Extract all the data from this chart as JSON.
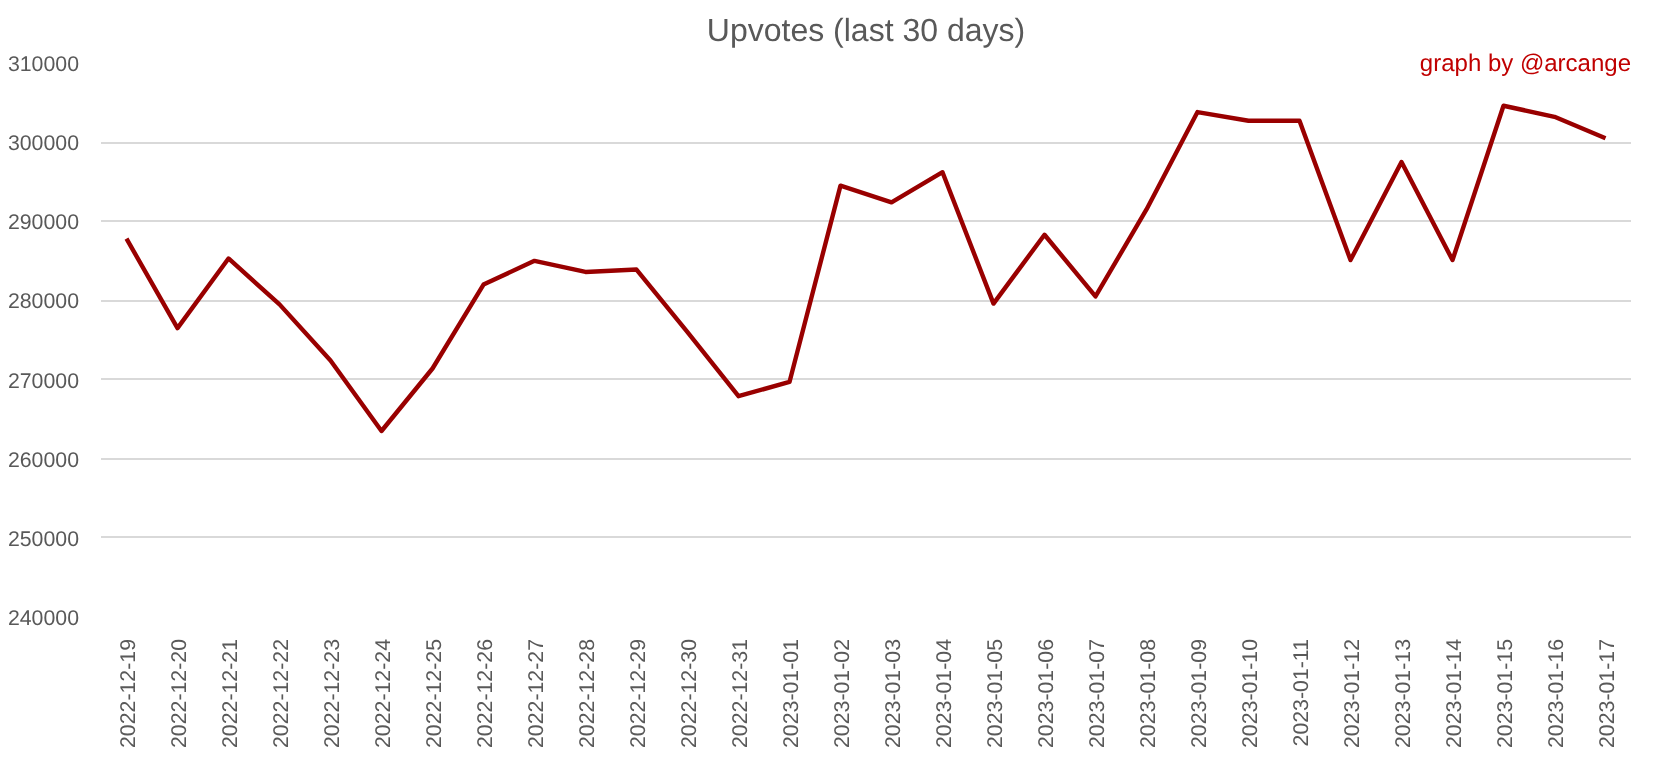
{
  "chart_data": {
    "type": "line",
    "title": "Upvotes (last 30 days)",
    "annotations": [
      "graph by @arcange"
    ],
    "categories": [
      "2022-12-19",
      "2022-12-20",
      "2022-12-21",
      "2022-12-22",
      "2022-12-23",
      "2022-12-24",
      "2022-12-25",
      "2022-12-26",
      "2022-12-27",
      "2022-12-28",
      "2022-12-29",
      "2022-12-30",
      "2022-12-31",
      "2023-01-01",
      "2023-01-02",
      "2023-01-03",
      "2023-01-04",
      "2023-01-05",
      "2023-01-06",
      "2023-01-07",
      "2023-01-08",
      "2023-01-09",
      "2023-01-10",
      "2023-01-11",
      "2023-01-12",
      "2023-01-13",
      "2023-01-14",
      "2023-01-15",
      "2023-01-16",
      "2023-01-17"
    ],
    "series": [
      {
        "color": "#990000",
        "values": [
          287800,
          276500,
          285300,
          279500,
          272400,
          263500,
          271400,
          282000,
          285000,
          283600,
          283900,
          276000,
          267900,
          269700,
          294500,
          292400,
          296200,
          279600,
          288300,
          280500,
          291500,
          303800,
          302700,
          302700,
          285100,
          297500,
          285100,
          304600,
          303200,
          300500
        ]
      }
    ],
    "ylim": [
      240000,
      310000
    ],
    "yticks": [
      240000,
      250000,
      260000,
      270000,
      280000,
      290000,
      300000,
      310000
    ],
    "grid": "y",
    "marker": "none",
    "line_style": "solid"
  }
}
